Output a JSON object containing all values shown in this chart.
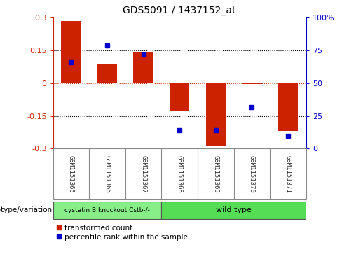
{
  "title": "GDS5091 / 1437152_at",
  "categories": [
    "GSM1151365",
    "GSM1151366",
    "GSM1151367",
    "GSM1151368",
    "GSM1151369",
    "GSM1151370",
    "GSM1151371"
  ],
  "red_values": [
    0.285,
    0.085,
    0.143,
    -0.13,
    -0.285,
    -0.005,
    -0.22
  ],
  "blue_values_pct": [
    66,
    79,
    72,
    14,
    14,
    32,
    10
  ],
  "ylim": [
    -0.3,
    0.3
  ],
  "yticks_red": [
    -0.3,
    -0.15,
    0.0,
    0.15,
    0.3
  ],
  "yticks_blue": [
    0,
    25,
    50,
    75,
    100
  ],
  "ytick_labels_red": [
    "-0.3",
    "-0.15",
    "0",
    "0.15",
    "0.3"
  ],
  "ytick_labels_blue": [
    "0",
    "25",
    "50",
    "75",
    "100%"
  ],
  "hlines_black": [
    -0.15,
    0.15
  ],
  "hline_red": 0.0,
  "red_color": "#cc2200",
  "blue_color": "#0000cc",
  "bar_width": 0.55,
  "group1_label": "cystatin B knockout Cstb-/-",
  "group2_label": "wild type",
  "group1_color": "#88ee88",
  "group2_color": "#55dd55",
  "group1_indices": [
    0,
    1,
    2
  ],
  "group2_indices": [
    3,
    4,
    5,
    6
  ],
  "legend_red": "transformed count",
  "legend_blue": "percentile rank within the sample",
  "xlabel_label": "genotype/variation",
  "bg_color": "#ffffff",
  "xtick_bg": "#cccccc",
  "xtick_border": "#888888"
}
